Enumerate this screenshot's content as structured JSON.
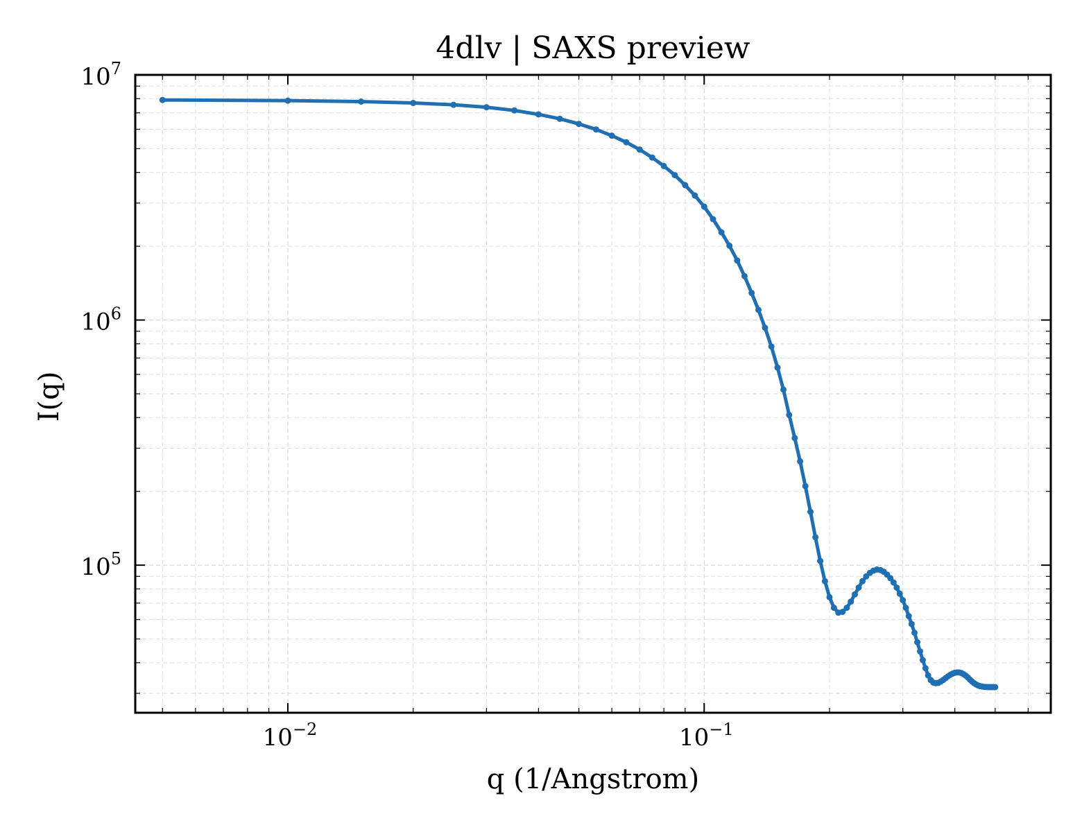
{
  "chart_data": {
    "type": "line",
    "title": "4dlv | SAXS preview",
    "xlabel": "q (1/Angstrom)",
    "ylabel": "I(q)",
    "xscale": "log",
    "yscale": "log",
    "xlim": [
      0.0043,
      0.68
    ],
    "ylim": [
      25000,
      10000000
    ],
    "grid": true,
    "x_ticks": [
      {
        "value": 0.01,
        "base": "10",
        "exp": "−2"
      },
      {
        "value": 0.1,
        "base": "10",
        "exp": "−1"
      }
    ],
    "y_ticks": [
      {
        "value": 100000,
        "base": "10",
        "exp": "5"
      },
      {
        "value": 1000000,
        "base": "10",
        "exp": "6"
      },
      {
        "value": 10000000,
        "base": "10",
        "exp": "7"
      }
    ],
    "colors": {
      "series": "#1f6fb2"
    },
    "series": [
      {
        "x": [
          0.005,
          0.01,
          0.015,
          0.02,
          0.025,
          0.03,
          0.035,
          0.04,
          0.045,
          0.05,
          0.055,
          0.06,
          0.065,
          0.07,
          0.075,
          0.08,
          0.085,
          0.09,
          0.095,
          0.1,
          0.105,
          0.11,
          0.115,
          0.12,
          0.125,
          0.13,
          0.135,
          0.14,
          0.145,
          0.15,
          0.155,
          0.16,
          0.165,
          0.17,
          0.175,
          0.18,
          0.185,
          0.19,
          0.195,
          0.2,
          0.205,
          0.21,
          0.215,
          0.22,
          0.225,
          0.23,
          0.235,
          0.24,
          0.245,
          0.25,
          0.255,
          0.26,
          0.265,
          0.27,
          0.275,
          0.28,
          0.285,
          0.29,
          0.295,
          0.3,
          0.305,
          0.31,
          0.315,
          0.32,
          0.325,
          0.33,
          0.335,
          0.34,
          0.345,
          0.35,
          0.355,
          0.36,
          0.365,
          0.37,
          0.375,
          0.38,
          0.385,
          0.39,
          0.395,
          0.4,
          0.405,
          0.41,
          0.415,
          0.42,
          0.425,
          0.43,
          0.435,
          0.44,
          0.445,
          0.45,
          0.455,
          0.46,
          0.465,
          0.47,
          0.475,
          0.48,
          0.485,
          0.49,
          0.495,
          0.5
        ],
        "y": [
          7900000,
          7850000,
          7780000,
          7680000,
          7550000,
          7380000,
          7160000,
          6900000,
          6620000,
          6310000,
          5990000,
          5650000,
          5310000,
          4960000,
          4600000,
          4250000,
          3900000,
          3550000,
          3220000,
          2900000,
          2580000,
          2280000,
          2010000,
          1750000,
          1510000,
          1290000,
          1100000,
          930000,
          780000,
          640000,
          520000,
          410000,
          330000,
          265000,
          210000,
          165000,
          130000,
          104000,
          86000,
          74000,
          67000,
          64000,
          64500,
          67000,
          71000,
          76000,
          81000,
          86000,
          90000,
          93000,
          95000,
          96000,
          95500,
          94000,
          91500,
          88500,
          85000,
          81000,
          76500,
          72000,
          67000,
          62000,
          57500,
          53000,
          48500,
          44500,
          41000,
          38000,
          35500,
          34000,
          33200,
          33000,
          33100,
          33500,
          34000,
          34600,
          35200,
          35700,
          36100,
          36400,
          36500,
          36500,
          36300,
          35900,
          35400,
          34800,
          34100,
          33500,
          33000,
          32600,
          32300,
          32100,
          32000,
          31900,
          31850,
          31800,
          31800,
          31800,
          31800,
          31800
        ]
      }
    ]
  }
}
